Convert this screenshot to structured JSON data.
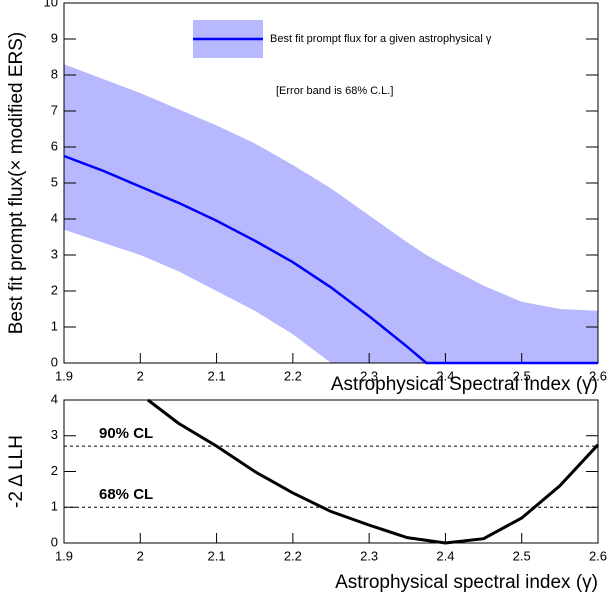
{
  "chart_data": [
    {
      "type": "line",
      "ylabel": "Best fit prompt flux(× modified ERS)",
      "xlabel": "Astrophysical Spectral Index (γ)",
      "xlim": [
        1.9,
        2.6
      ],
      "xticks": [
        1.9,
        2,
        2.1,
        2.2,
        2.3,
        2.4,
        2.5,
        2.6
      ],
      "ylim": [
        0,
        10
      ],
      "yticks": [
        0,
        1,
        2,
        3,
        4,
        5,
        6,
        7,
        8,
        9,
        10
      ],
      "x": [
        1.9,
        1.95,
        2.0,
        2.05,
        2.1,
        2.15,
        2.2,
        2.25,
        2.3,
        2.35,
        2.375,
        2.4,
        2.45,
        2.5,
        2.55,
        2.6
      ],
      "series": [
        {
          "name": "Best fit prompt flux for a given astrophysical γ",
          "color": "#0000ff",
          "values": [
            5.75,
            5.35,
            4.9,
            4.45,
            3.95,
            3.4,
            2.8,
            2.1,
            1.3,
            0.45,
            0,
            0,
            0,
            0,
            0,
            0
          ]
        }
      ],
      "band": {
        "color": "#0000ff",
        "upper": [
          8.3,
          7.9,
          7.5,
          7.05,
          6.6,
          6.1,
          5.5,
          4.85,
          4.1,
          3.35,
          3.0,
          2.7,
          2.15,
          1.7,
          1.5,
          1.45
        ],
        "lower": [
          3.7,
          3.35,
          3.0,
          2.55,
          2.0,
          1.45,
          0.8,
          0,
          0,
          0,
          0,
          0,
          0,
          0,
          0,
          0
        ]
      },
      "annotation": "[Error band is 68% C.L.]"
    },
    {
      "type": "line",
      "ylabel": "-2 Δ LLH",
      "xlabel": "Astrophysical spectral index (γ)",
      "xlim": [
        1.9,
        2.6
      ],
      "xticks": [
        1.9,
        2,
        2.1,
        2.2,
        2.3,
        2.4,
        2.5,
        2.6
      ],
      "ylim": [
        0,
        4
      ],
      "yticks": [
        0,
        1,
        2,
        3,
        4
      ],
      "x": [
        2.01,
        2.05,
        2.1,
        2.15,
        2.2,
        2.25,
        2.3,
        2.35,
        2.4,
        2.45,
        2.5,
        2.55,
        2.6
      ],
      "series": [
        {
          "color": "#000000",
          "values": [
            4.0,
            3.35,
            2.71,
            2.0,
            1.4,
            0.88,
            0.5,
            0.15,
            0,
            0.12,
            0.7,
            1.6,
            2.75
          ]
        }
      ],
      "hlines": [
        {
          "value": 2.71,
          "label": "90% CL"
        },
        {
          "value": 1,
          "label": "68% CL"
        }
      ]
    }
  ]
}
